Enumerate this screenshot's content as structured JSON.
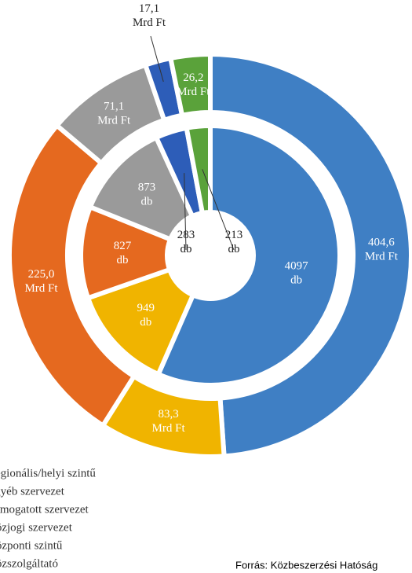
{
  "chart_data": {
    "type": "donut",
    "categories": [
      "Regionális/helyi szintű",
      "Egyéb szervezet",
      "Támogatott szervezet",
      "Közjogi szervezet",
      "Központi szintű",
      "Közszolgáltató"
    ],
    "colors": [
      "#3f7fc4",
      "#f0b400",
      "#e5691f",
      "#9a9a9a",
      "#2d5db8",
      "#5aa23a"
    ],
    "series": [
      {
        "unit": "Mrd Ft",
        "values": [
          404.6,
          83.3,
          225.0,
          71.1,
          17.1,
          26.2
        ],
        "value_labels": [
          "404,6",
          "83,3",
          "225,0",
          "71,1",
          "17,1",
          "26,2"
        ]
      },
      {
        "unit": "db",
        "values": [
          4097,
          949,
          827,
          873,
          283,
          213
        ]
      }
    ],
    "source": "Forrás: Közbeszerzési Hatóság"
  }
}
